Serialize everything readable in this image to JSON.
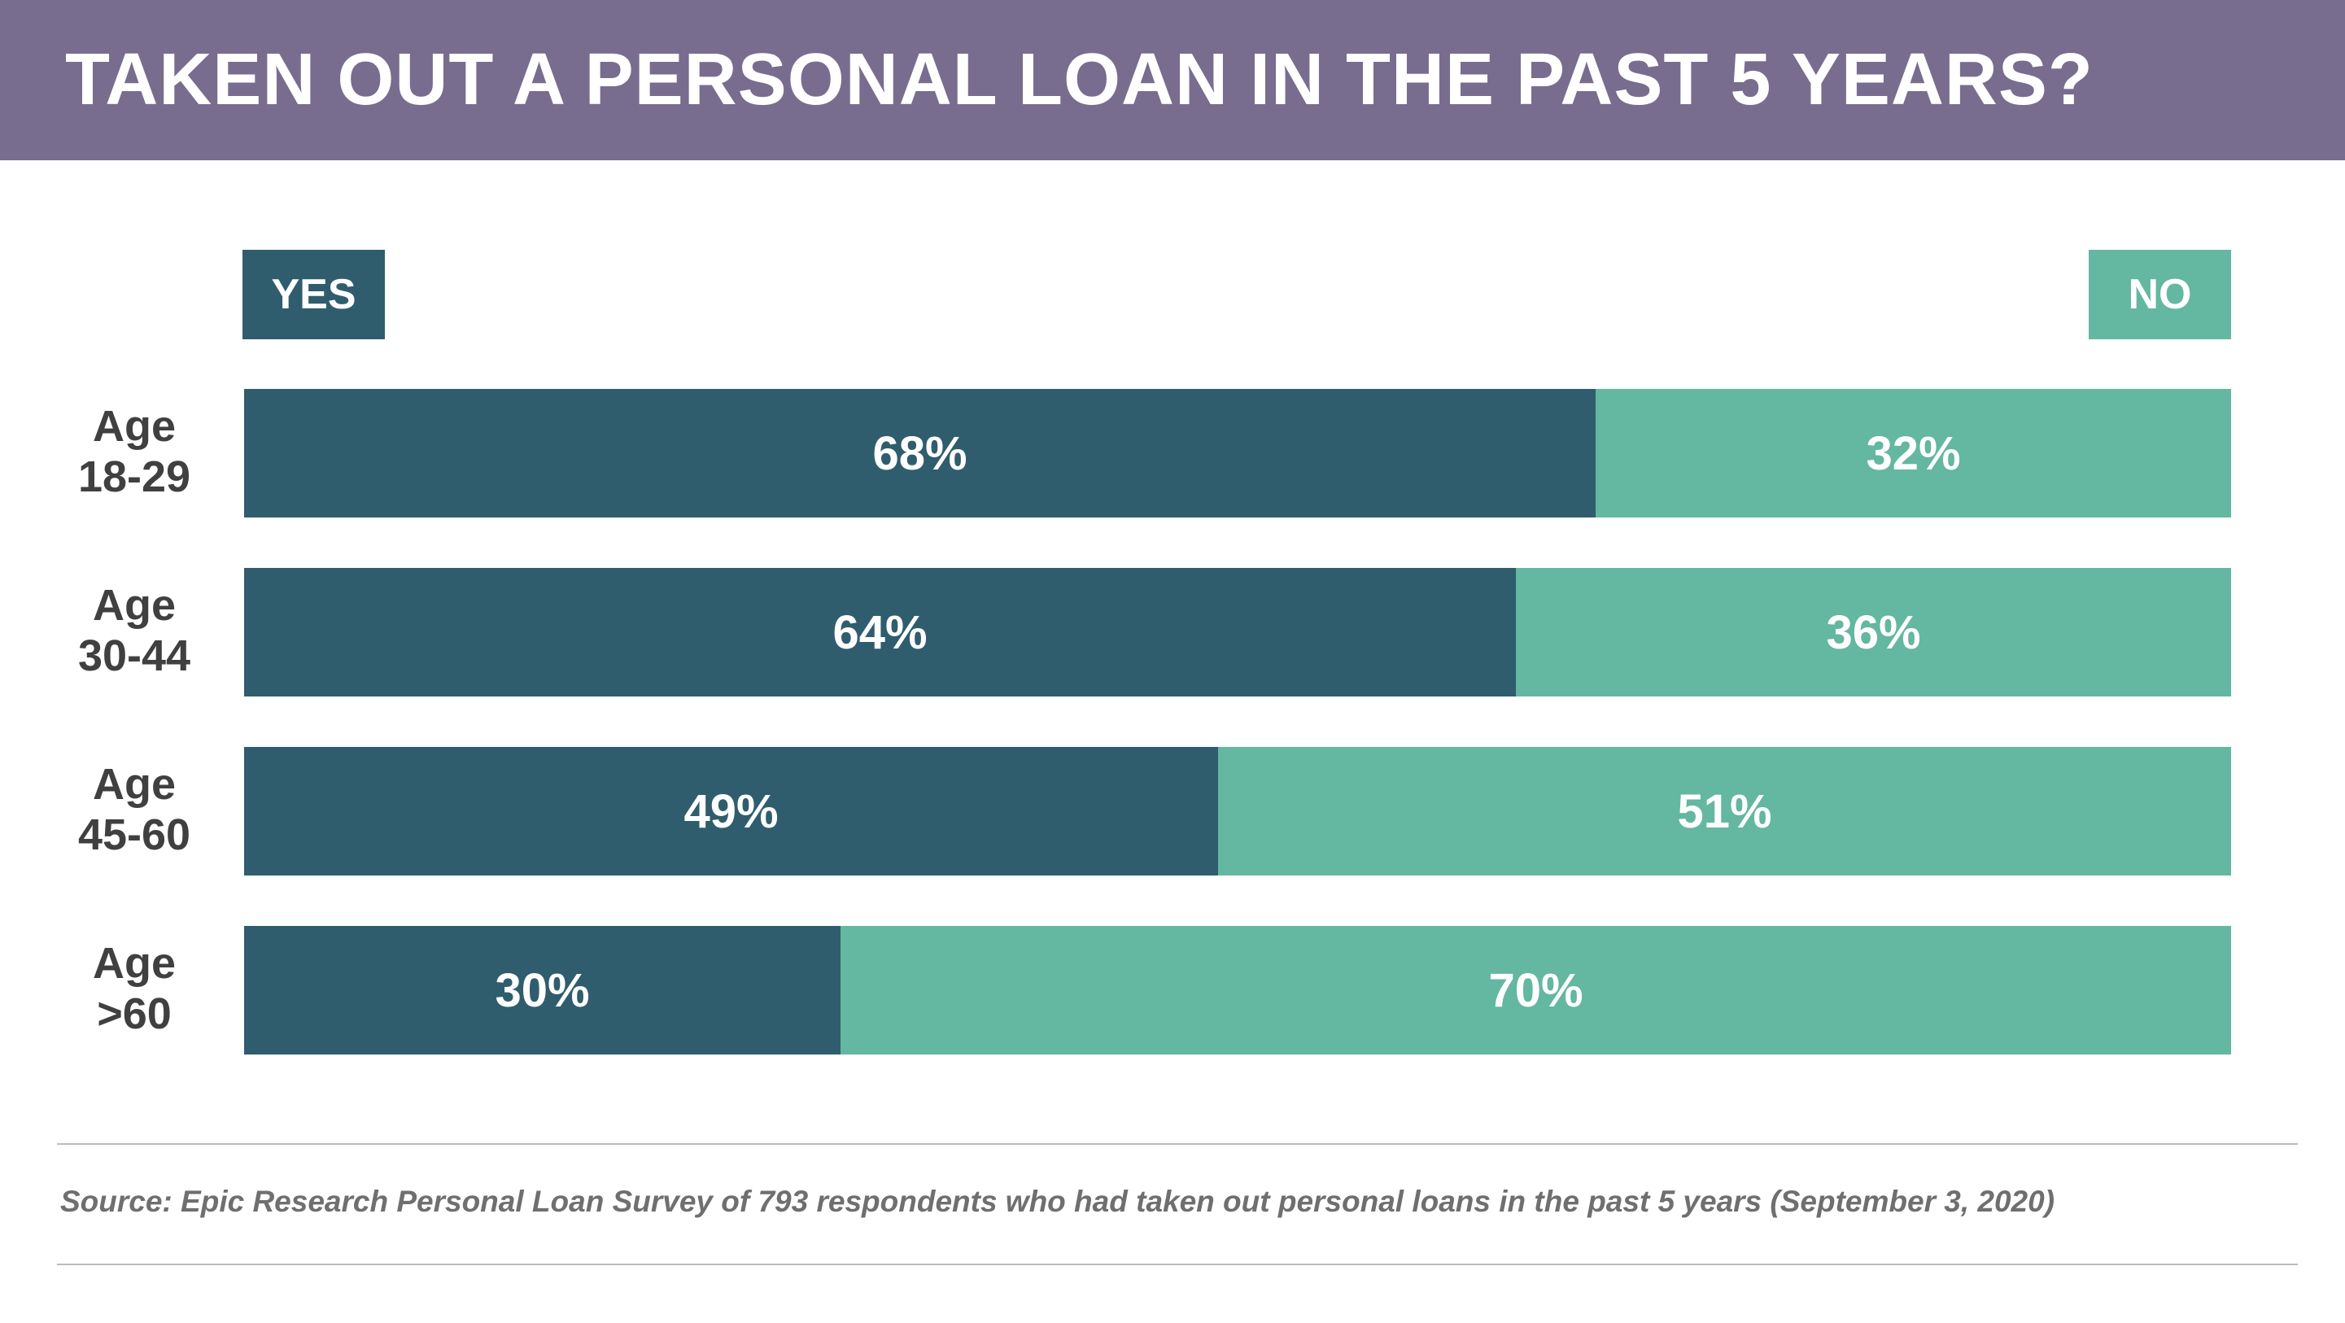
{
  "header": {
    "title": "TAKEN OUT A PERSONAL LOAN IN THE PAST 5 YEARS?"
  },
  "legend": {
    "yes": "YES",
    "no": "NO"
  },
  "colors": {
    "header_bg": "#786d8f",
    "yes": "#305d6d",
    "no": "#64b7a0"
  },
  "chart_data": {
    "type": "bar",
    "orientation": "horizontal",
    "stacked": true,
    "normalized_to_percent": true,
    "title": "TAKEN OUT A PERSONAL LOAN IN THE PAST 5 YEARS?",
    "legend_position": "top",
    "categories": [
      "Age\n18-29",
      "Age\n30-44",
      "Age\n45-60",
      "Age\n>60"
    ],
    "series": [
      {
        "name": "YES",
        "values": [
          68,
          64,
          49,
          30
        ],
        "labels": [
          "68%",
          "64%",
          "49%",
          "30%"
        ]
      },
      {
        "name": "NO",
        "values": [
          32,
          36,
          51,
          70
        ],
        "labels": [
          "32%",
          "36%",
          "51%",
          "70%"
        ]
      }
    ],
    "xlim": [
      0,
      100
    ]
  },
  "footer": {
    "source": "Source: Epic Research Personal Loan Survey of 793 respondents who had taken out personal loans in the past 5 years (September 3, 2020)"
  }
}
